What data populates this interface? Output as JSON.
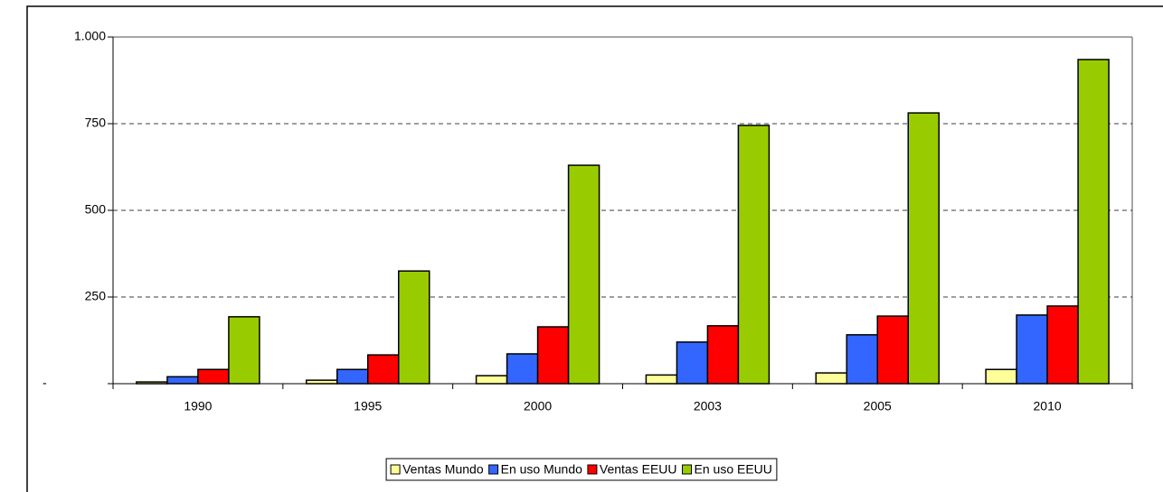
{
  "chart_data": {
    "type": "bar",
    "categories": [
      "1990",
      "1995",
      "2000",
      "2003",
      "2005",
      "2010"
    ],
    "series": [
      {
        "name": "Ventas Mundo",
        "color": "#ffff99",
        "values": [
          5,
          10,
          23,
          25,
          31,
          41
        ]
      },
      {
        "name": "En uso Mundo",
        "color": "#3366ff",
        "values": [
          20,
          41,
          86,
          120,
          141,
          198
        ]
      },
      {
        "name": "Ventas EEUU",
        "color": "#ff0000",
        "values": [
          41,
          83,
          164,
          167,
          195,
          224
        ]
      },
      {
        "name": "En uso EEUU",
        "color": "#99cc00",
        "values": [
          193,
          325,
          630,
          745,
          781,
          935
        ]
      }
    ],
    "ylim": [
      0,
      1000
    ],
    "yticks": [
      {
        "value": 0,
        "label": "-"
      },
      250,
      500,
      750,
      {
        "value": 1000,
        "label": "1.000"
      }
    ],
    "grid": true,
    "legend": "bottom"
  }
}
